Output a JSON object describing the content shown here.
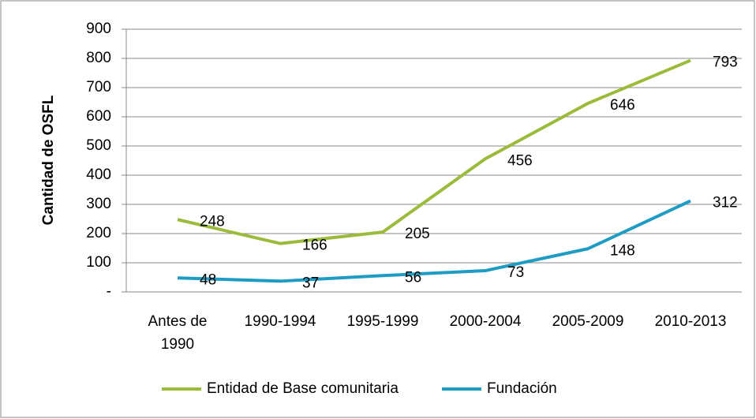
{
  "chart_data": {
    "type": "line",
    "y_label": "Cantidad de OSFL",
    "categories": [
      "Antes de 1990",
      "1990-1994",
      "1995-1999",
      "2000-2004",
      "2005-2009",
      "2010-2013"
    ],
    "series": [
      {
        "name": "Entidad de Base comunitaria",
        "color": "#9bbb3b",
        "values": [
          248,
          166,
          205,
          456,
          646,
          793
        ]
      },
      {
        "name": "Fundación",
        "color": "#1f9cc4",
        "values": [
          48,
          37,
          56,
          73,
          148,
          312
        ]
      }
    ],
    "ylim": [
      0,
      900
    ],
    "yticks": [
      {
        "value": 0,
        "label": "-"
      },
      100,
      200,
      300,
      400,
      500,
      600,
      700,
      800,
      900
    ],
    "grid": true,
    "legend": "bottom"
  }
}
